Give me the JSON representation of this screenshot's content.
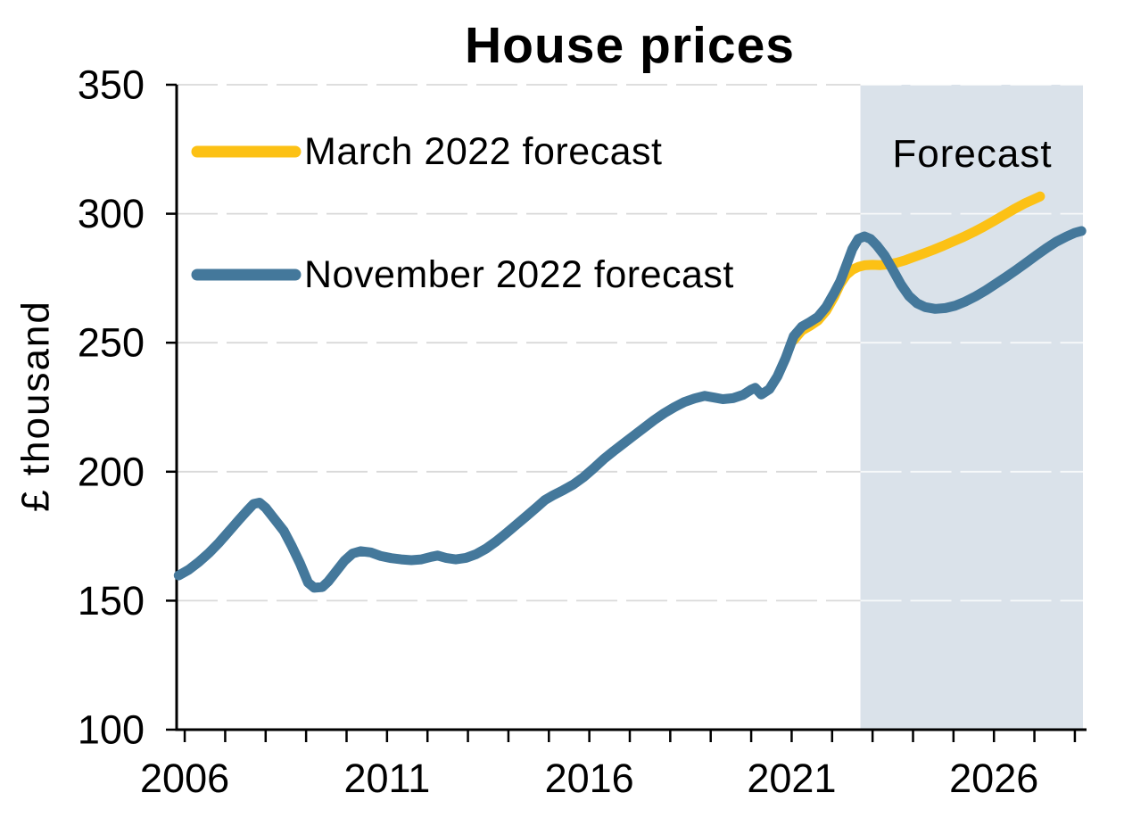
{
  "title": "House prices",
  "y_axis_label": "£ thousand",
  "forecast_label": "Forecast",
  "legend": [
    {
      "label": "March 2022 forecast",
      "color": "#fcc115"
    },
    {
      "label": "November 2022 forecast",
      "color": "#44789b"
    }
  ],
  "chart_data": {
    "type": "line",
    "title": "House prices",
    "xlabel": "",
    "ylabel": "£ thousand",
    "ylim": [
      100,
      350
    ],
    "xlim": [
      2005.8,
      2028.2
    ],
    "y_ticks": [
      100,
      150,
      200,
      250,
      300,
      350
    ],
    "x_tick_step_years": 1,
    "x_ticks_labeled": [
      "2006",
      "2011",
      "2016",
      "2021",
      "2026"
    ],
    "x_ticks_labeled_years": [
      2006,
      2011,
      2016,
      2021,
      2026
    ],
    "grid": "horizontal dashed",
    "gridline_color": "#d9d9d9",
    "axis_color": "#000000",
    "legend_position": "inside top-left",
    "forecast_band": {
      "label": "Forecast",
      "x_start": 2022.7,
      "x_end": 2028.2,
      "fill": "#dae2ea"
    },
    "series": [
      {
        "name": "March 2022 forecast",
        "color": "#fcc115",
        "points": [
          [
            2021.05,
            251.0
          ],
          [
            2021.25,
            254.7
          ],
          [
            2021.45,
            256.5
          ],
          [
            2021.65,
            258.6
          ],
          [
            2021.85,
            262.3
          ],
          [
            2022.05,
            267.8
          ],
          [
            2022.2,
            272.8
          ],
          [
            2022.35,
            276.3
          ],
          [
            2022.5,
            278.3
          ],
          [
            2022.65,
            279.4
          ],
          [
            2022.8,
            280.0
          ],
          [
            2023.0,
            280.2
          ],
          [
            2023.2,
            280.1
          ],
          [
            2023.4,
            280.4
          ],
          [
            2023.6,
            281.0
          ],
          [
            2023.8,
            281.9
          ],
          [
            2024.0,
            283.1
          ],
          [
            2024.25,
            284.5
          ],
          [
            2024.5,
            286.0
          ],
          [
            2024.75,
            287.6
          ],
          [
            2025.0,
            289.3
          ],
          [
            2025.25,
            291.0
          ],
          [
            2025.5,
            292.9
          ],
          [
            2025.75,
            295.0
          ],
          [
            2026.0,
            297.2
          ],
          [
            2026.25,
            299.5
          ],
          [
            2026.5,
            301.8
          ],
          [
            2026.75,
            303.9
          ],
          [
            2027.0,
            305.7
          ],
          [
            2027.14,
            306.7
          ]
        ]
      },
      {
        "name": "November 2022 forecast",
        "color": "#44789b",
        "points": [
          [
            2005.85,
            159.8
          ],
          [
            2006.1,
            162.0
          ],
          [
            2006.35,
            165.0
          ],
          [
            2006.6,
            168.5
          ],
          [
            2006.85,
            172.5
          ],
          [
            2007.1,
            177.0
          ],
          [
            2007.35,
            181.5
          ],
          [
            2007.55,
            185.0
          ],
          [
            2007.7,
            187.5
          ],
          [
            2007.85,
            188.0
          ],
          [
            2008.0,
            186.0
          ],
          [
            2008.2,
            182.0
          ],
          [
            2008.45,
            177.0
          ],
          [
            2008.65,
            171.0
          ],
          [
            2008.85,
            164.5
          ],
          [
            2009.05,
            157.0
          ],
          [
            2009.2,
            155.0
          ],
          [
            2009.4,
            155.3
          ],
          [
            2009.55,
            157.5
          ],
          [
            2009.75,
            161.5
          ],
          [
            2009.95,
            165.5
          ],
          [
            2010.15,
            168.3
          ],
          [
            2010.35,
            169.2
          ],
          [
            2010.6,
            168.7
          ],
          [
            2010.85,
            167.3
          ],
          [
            2011.1,
            166.5
          ],
          [
            2011.35,
            166.0
          ],
          [
            2011.6,
            165.7
          ],
          [
            2011.85,
            166.0
          ],
          [
            2012.1,
            167.0
          ],
          [
            2012.25,
            167.5
          ],
          [
            2012.45,
            166.6
          ],
          [
            2012.7,
            166.0
          ],
          [
            2012.95,
            166.6
          ],
          [
            2013.2,
            168.0
          ],
          [
            2013.45,
            170.2
          ],
          [
            2013.7,
            173.0
          ],
          [
            2013.95,
            176.2
          ],
          [
            2014.2,
            179.5
          ],
          [
            2014.45,
            182.8
          ],
          [
            2014.7,
            186.2
          ],
          [
            2014.9,
            189.0
          ],
          [
            2015.1,
            190.8
          ],
          [
            2015.35,
            192.8
          ],
          [
            2015.6,
            195.0
          ],
          [
            2015.85,
            197.8
          ],
          [
            2016.1,
            201.2
          ],
          [
            2016.35,
            204.8
          ],
          [
            2016.6,
            208.0
          ],
          [
            2016.85,
            211.0
          ],
          [
            2017.1,
            214.0
          ],
          [
            2017.35,
            217.0
          ],
          [
            2017.6,
            220.0
          ],
          [
            2017.85,
            222.7
          ],
          [
            2018.1,
            225.0
          ],
          [
            2018.35,
            227.0
          ],
          [
            2018.6,
            228.4
          ],
          [
            2018.85,
            229.4
          ],
          [
            2019.1,
            228.7
          ],
          [
            2019.3,
            228.1
          ],
          [
            2019.55,
            228.5
          ],
          [
            2019.8,
            229.8
          ],
          [
            2020.0,
            231.8
          ],
          [
            2020.1,
            232.5
          ],
          [
            2020.25,
            229.9
          ],
          [
            2020.45,
            232.0
          ],
          [
            2020.65,
            237.0
          ],
          [
            2020.85,
            244.0
          ],
          [
            2021.05,
            252.5
          ],
          [
            2021.25,
            256.2
          ],
          [
            2021.45,
            258.0
          ],
          [
            2021.65,
            260.0
          ],
          [
            2021.85,
            263.8
          ],
          [
            2022.05,
            269.3
          ],
          [
            2022.2,
            273.8
          ],
          [
            2022.35,
            280.0
          ],
          [
            2022.5,
            286.3
          ],
          [
            2022.65,
            290.3
          ],
          [
            2022.8,
            291.2
          ],
          [
            2022.95,
            290.2
          ],
          [
            2023.1,
            287.8
          ],
          [
            2023.3,
            283.8
          ],
          [
            2023.5,
            278.3
          ],
          [
            2023.7,
            272.6
          ],
          [
            2023.9,
            268.1
          ],
          [
            2024.1,
            265.3
          ],
          [
            2024.3,
            263.8
          ],
          [
            2024.55,
            263.1
          ],
          [
            2024.8,
            263.4
          ],
          [
            2025.05,
            264.4
          ],
          [
            2025.3,
            266.0
          ],
          [
            2025.55,
            268.0
          ],
          [
            2025.8,
            270.3
          ],
          [
            2026.05,
            272.9
          ],
          [
            2026.3,
            275.5
          ],
          [
            2026.55,
            278.2
          ],
          [
            2026.8,
            281.0
          ],
          [
            2027.05,
            283.9
          ],
          [
            2027.3,
            286.7
          ],
          [
            2027.55,
            289.2
          ],
          [
            2027.8,
            291.2
          ],
          [
            2028.0,
            292.6
          ],
          [
            2028.16,
            293.3
          ]
        ]
      }
    ]
  }
}
